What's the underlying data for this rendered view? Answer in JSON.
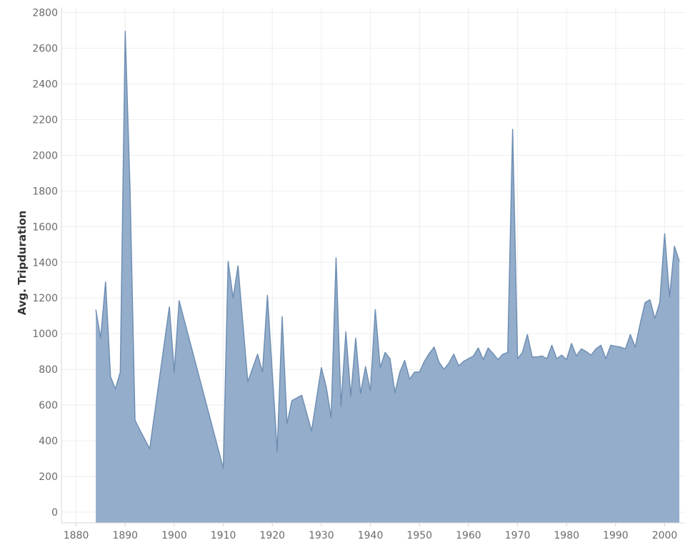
{
  "chart_data": {
    "type": "area",
    "ylabel": "Avg. Tripduration",
    "xlabel": "",
    "xlim": [
      1877,
      2004
    ],
    "ylim": [
      -60,
      2830
    ],
    "x_ticks": [
      1880,
      1890,
      1900,
      1910,
      1920,
      1930,
      1940,
      1950,
      1960,
      1970,
      1980,
      1990,
      2000
    ],
    "y_ticks": [
      0,
      200,
      400,
      600,
      800,
      1000,
      1200,
      1400,
      1600,
      1800,
      2000,
      2200,
      2400,
      2600,
      2800
    ],
    "grid": true,
    "colors": {
      "fill": "#8ea9c8",
      "line": "#6f8fb3"
    },
    "series": [
      {
        "x": [
          1884,
          1885,
          1886,
          1887,
          1888,
          1889,
          1890,
          1891,
          1892,
          1893,
          1895,
          1899,
          1900,
          1901,
          1910,
          1911,
          1912,
          1913,
          1915,
          1917,
          1918,
          1919,
          1921,
          1922,
          1923,
          1924,
          1926,
          1928,
          1930,
          1931,
          1932,
          1933,
          1934,
          1935,
          1936,
          1937,
          1938,
          1939,
          1940,
          1941,
          1942,
          1943,
          1944,
          1945,
          1946,
          1947,
          1948,
          1949,
          1950,
          1951,
          1952,
          1953,
          1954,
          1955,
          1956,
          1957,
          1958,
          1959,
          1960,
          1961,
          1962,
          1963,
          1964,
          1965,
          1966,
          1967,
          1968,
          1969,
          1970,
          1971,
          1972,
          1973,
          1974,
          1975,
          1976,
          1977,
          1978,
          1979,
          1980,
          1981,
          1982,
          1983,
          1984,
          1985,
          1986,
          1987,
          1988,
          1989,
          1990,
          1991,
          1992,
          1993,
          1994,
          1995,
          1996,
          1997,
          1998,
          1999,
          2000,
          2001,
          2002,
          2003
        ],
        "values": [
          1135,
          975,
          1290,
          760,
          690,
          785,
          2695,
          1800,
          515,
          460,
          355,
          1150,
          785,
          1185,
          245,
          1405,
          1200,
          1380,
          730,
          885,
          785,
          1215,
          340,
          1095,
          495,
          625,
          655,
          455,
          810,
          700,
          530,
          1425,
          595,
          1010,
          650,
          975,
          665,
          815,
          680,
          1135,
          810,
          895,
          860,
          670,
          785,
          850,
          745,
          785,
          785,
          845,
          890,
          925,
          840,
          800,
          835,
          885,
          820,
          845,
          860,
          875,
          920,
          855,
          920,
          890,
          855,
          885,
          895,
          2145,
          860,
          895,
          995,
          870,
          870,
          875,
          860,
          935,
          860,
          880,
          855,
          945,
          875,
          915,
          900,
          880,
          915,
          935,
          860,
          935,
          930,
          925,
          915,
          995,
          925,
          1055,
          1175,
          1190,
          1085,
          1175,
          1560,
          1205,
          1490,
          1405
        ]
      }
    ]
  }
}
